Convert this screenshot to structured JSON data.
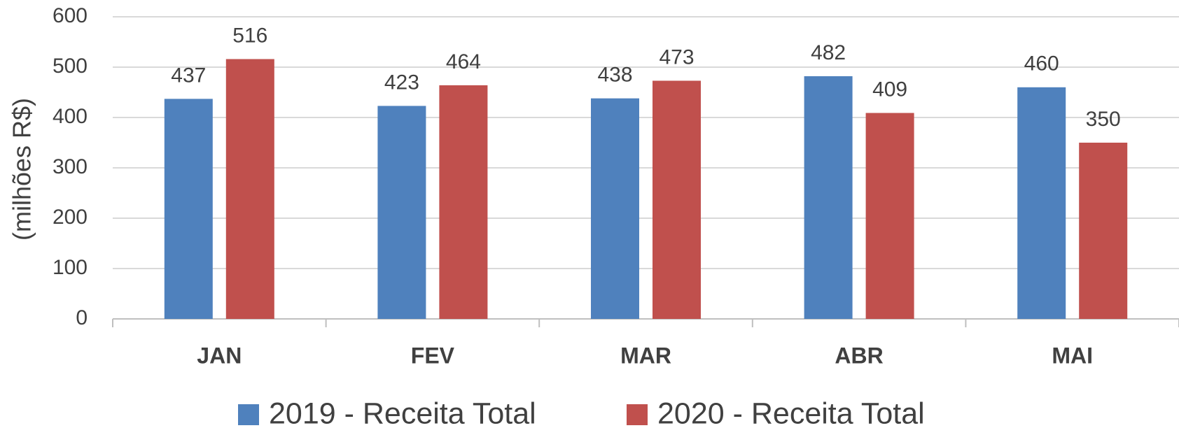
{
  "chart_data": {
    "type": "bar",
    "y_label": "(milhões R$)",
    "categories": [
      "JAN",
      "FEV",
      "MAR",
      "ABR",
      "MAI"
    ],
    "series": [
      {
        "name": "2019 - Receita Total",
        "color": "#4f81bd",
        "values": [
          437,
          423,
          438,
          482,
          460
        ]
      },
      {
        "name": "2020 - Receita Total",
        "color": "#c0504d",
        "values": [
          516,
          464,
          473,
          409,
          350
        ]
      }
    ],
    "ylim": [
      0,
      600
    ],
    "yticks": [
      0,
      100,
      200,
      300,
      400,
      500,
      600
    ],
    "grid": true,
    "legend": "bottom"
  }
}
